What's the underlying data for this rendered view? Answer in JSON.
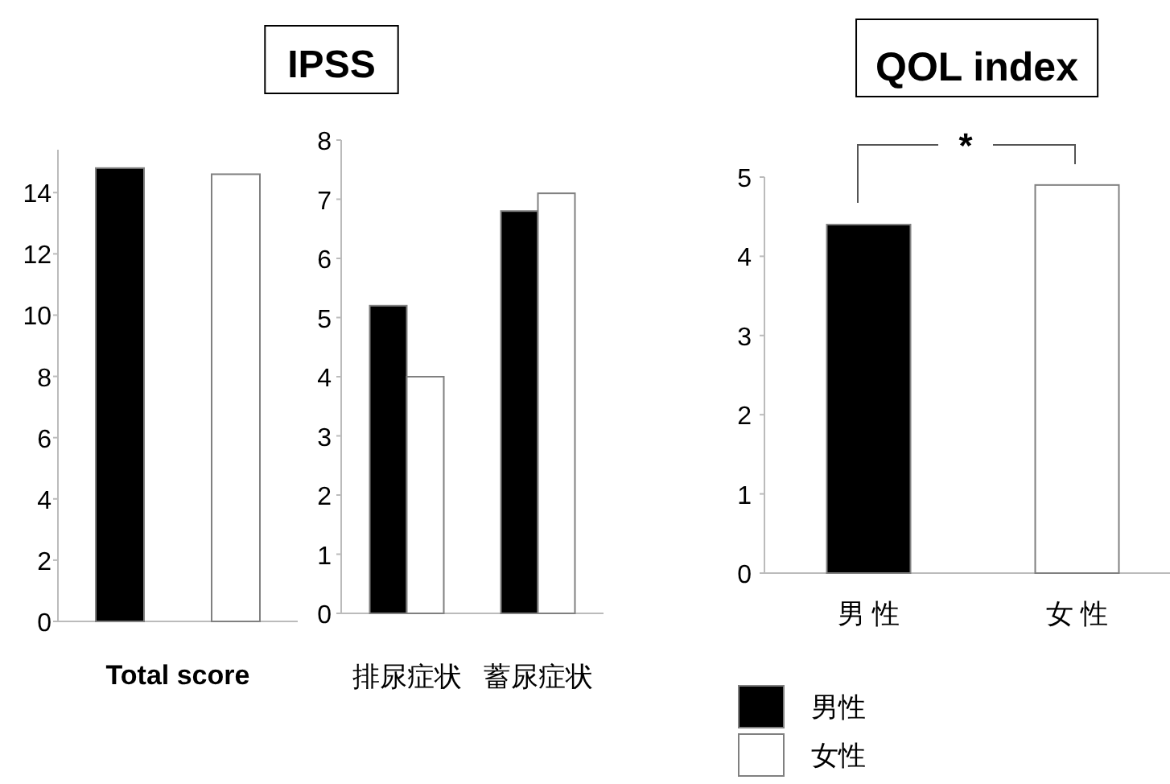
{
  "chart_data": [
    {
      "type": "bar",
      "title": "IPSS",
      "categories": [
        "Total score"
      ],
      "ylim": [
        0,
        15.4
      ],
      "yticks": [
        0,
        2,
        4,
        6,
        8,
        10,
        12,
        14
      ],
      "series": [
        {
          "color": "#000000",
          "values": [
            14.8
          ]
        },
        {
          "color": "#ffffff",
          "values": [
            14.6
          ]
        }
      ]
    },
    {
      "type": "bar",
      "categories": [
        "排尿症状",
        "蓄尿症状"
      ],
      "ylim": [
        0,
        8
      ],
      "yticks": [
        0,
        1,
        2,
        3,
        4,
        5,
        6,
        7,
        8
      ],
      "series": [
        {
          "color": "#000000",
          "values": [
            5.2,
            6.8
          ]
        },
        {
          "color": "#ffffff",
          "values": [
            4.0,
            7.1
          ]
        }
      ]
    },
    {
      "type": "bar",
      "title": "QOL index",
      "categories": [
        "男 性",
        "女 性"
      ],
      "ylim": [
        0,
        5
      ],
      "yticks": [
        0,
        1,
        2,
        3,
        4,
        5
      ],
      "legend": "bottom",
      "annotations": [
        "*"
      ],
      "series": [
        {
          "name": "男性",
          "color": "#000000",
          "values": [
            4.4,
            null
          ]
        },
        {
          "name": "女性",
          "color": "#ffffff",
          "values": [
            null,
            4.9
          ]
        }
      ]
    }
  ]
}
